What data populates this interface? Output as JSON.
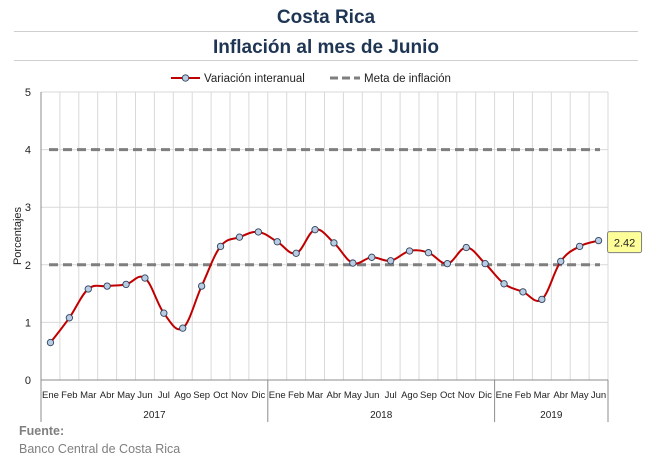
{
  "chart_data": {
    "type": "line",
    "title": "Costa Rica",
    "subtitle": "Inflación al mes de Junio",
    "ylabel": "Porcentajes",
    "xlabel": "",
    "ylim": [
      0,
      5
    ],
    "yticks": [
      "0",
      "1",
      "2",
      "3",
      "4",
      "5"
    ],
    "grid": true,
    "legend_position": "top",
    "months": [
      "Ene",
      "Feb",
      "Mar",
      "Abr",
      "May",
      "Jun",
      "Jul",
      "Ago",
      "Sep",
      "Oct",
      "Nov",
      "Dic",
      "Ene",
      "Feb",
      "Mar",
      "Abr",
      "May",
      "Jun",
      "Jul",
      "Ago",
      "Sep",
      "Oct",
      "Nov",
      "Dic",
      "Ene",
      "Feb",
      "Mar",
      "Abr",
      "May",
      "Jun"
    ],
    "years": [
      {
        "label": "2017",
        "months": 12
      },
      {
        "label": "2018",
        "months": 12
      },
      {
        "label": "2019",
        "months": 6
      }
    ],
    "series": [
      {
        "name": "Variación interanual",
        "color": "#c00000",
        "marker_fill": "#b8cce4",
        "values": [
          0.65,
          1.08,
          1.58,
          1.63,
          1.66,
          1.77,
          1.16,
          0.9,
          1.63,
          2.32,
          2.48,
          2.57,
          2.4,
          2.2,
          2.61,
          2.38,
          2.03,
          2.13,
          2.07,
          2.24,
          2.21,
          2.02,
          2.3,
          2.02,
          1.67,
          1.53,
          1.4,
          2.06,
          2.32,
          2.42
        ]
      },
      {
        "name": "Meta de inflación",
        "color": "#7f7f7f",
        "style": "dashed",
        "bands": [
          2,
          4
        ]
      }
    ],
    "annotation": {
      "text": "2.42",
      "fill": "#ffff99"
    }
  },
  "footer": {
    "label": "Fuente:",
    "source": "Banco Central de Costa Rica"
  }
}
